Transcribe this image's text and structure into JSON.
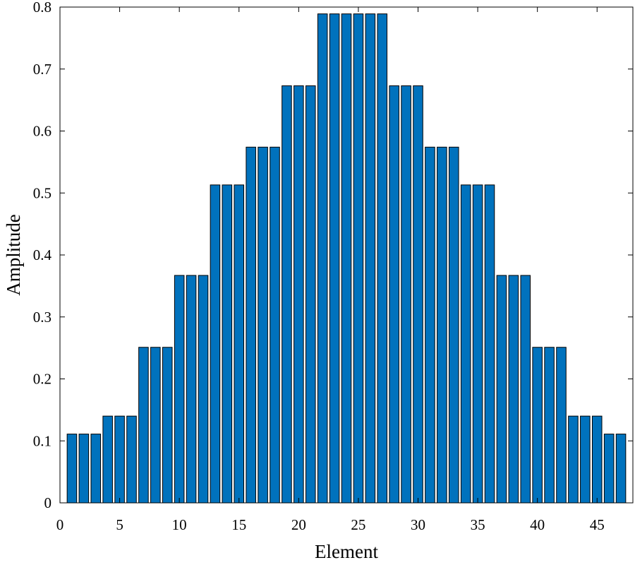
{
  "chart_data": {
    "type": "bar",
    "title": "",
    "xlabel": "Element",
    "ylabel": "Amplitude",
    "xlim": [
      0,
      48
    ],
    "ylim": [
      0,
      0.8
    ],
    "xticks": [
      0,
      5,
      10,
      15,
      20,
      25,
      30,
      35,
      40,
      45
    ],
    "yticks": [
      0,
      0.1,
      0.2,
      0.3,
      0.4,
      0.5,
      0.6,
      0.7,
      0.8
    ],
    "ytick_labels": [
      "0",
      "0.1",
      "0.2",
      "0.3",
      "0.4",
      "0.5",
      "0.6",
      "0.7",
      "0.8"
    ],
    "grid": false,
    "legend": "none",
    "bar_color": "#0072bd",
    "bar_edge_color": "#000000",
    "x": [
      1,
      2,
      3,
      4,
      5,
      6,
      7,
      8,
      9,
      10,
      11,
      12,
      13,
      14,
      15,
      16,
      17,
      18,
      19,
      20,
      21,
      22,
      23,
      24,
      25,
      26,
      27,
      28,
      29,
      30,
      31,
      32,
      33,
      34,
      35,
      36,
      37,
      38,
      39,
      40,
      41,
      42,
      43,
      44,
      45,
      46,
      47
    ],
    "values": [
      0.111,
      0.111,
      0.111,
      0.14,
      0.14,
      0.14,
      0.251,
      0.251,
      0.251,
      0.367,
      0.367,
      0.367,
      0.513,
      0.513,
      0.513,
      0.574,
      0.574,
      0.574,
      0.673,
      0.673,
      0.673,
      0.789,
      0.789,
      0.789,
      0.789,
      0.789,
      0.789,
      0.673,
      0.673,
      0.673,
      0.574,
      0.574,
      0.574,
      0.513,
      0.513,
      0.513,
      0.367,
      0.367,
      0.367,
      0.251,
      0.251,
      0.251,
      0.14,
      0.14,
      0.14,
      0.111,
      0.111
    ]
  }
}
